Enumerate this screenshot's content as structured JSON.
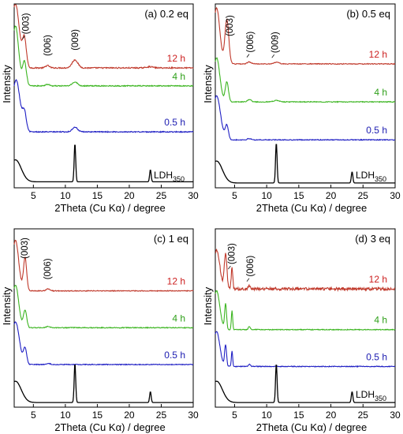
{
  "figure": {
    "colors": {
      "12 h": "#c0392b",
      "4 h": "#3cb521",
      "0.5 h": "#1f1fc4",
      "LDH": "#000000",
      "label_12 h": "#cc1f1f",
      "label_4 h": "#2fa01a",
      "label_0.5 h": "#1a1ab0"
    }
  },
  "chart_data": [
    {
      "type": "line",
      "title": "(a) 0.2 eq",
      "xlabel": "2Theta (Cu Kα)  /  degree",
      "ylabel": "Intensity",
      "xlim": [
        2,
        30
      ],
      "xticks": [
        "5",
        "10",
        "15",
        "20",
        "25",
        "30"
      ],
      "ldh_label": {
        "main": "LDH",
        "sub": "350"
      },
      "annotations": [
        {
          "text": "(003)",
          "x": 3.8,
          "pointer": true
        },
        {
          "text": "(006)",
          "x": 7.2,
          "pointer": false
        },
        {
          "text": "(009)",
          "x": 11.5,
          "pointer": false
        }
      ],
      "series": [
        {
          "name": "12 h",
          "offset": 3.0,
          "noise": 0.015,
          "peaks": [
            [
              2.2,
              1.6,
              0.6
            ],
            [
              3.6,
              0.7,
              0.3
            ],
            [
              7.2,
              0.06,
              0.3
            ],
            [
              11.5,
              0.2,
              0.45
            ],
            [
              23.2,
              0.03,
              0.5
            ]
          ]
        },
        {
          "name": "4 h",
          "offset": 2.55,
          "noise": 0.012,
          "peaks": [
            [
              2.2,
              1.5,
              0.5
            ],
            [
              3.6,
              0.6,
              0.3
            ],
            [
              7.2,
              0.04,
              0.3
            ],
            [
              11.5,
              0.1,
              0.4
            ]
          ]
        },
        {
          "name": "0.5 h",
          "offset": 1.4,
          "noise": 0.012,
          "peaks": [
            [
              2.3,
              1.3,
              0.6
            ],
            [
              3.6,
              0.45,
              0.3
            ],
            [
              11.5,
              0.12,
              0.4
            ]
          ]
        },
        {
          "name": "LDH",
          "offset": 0.15,
          "noise": 0.0,
          "peaks": [
            [
              2.2,
              0.55,
              0.9
            ],
            [
              11.5,
              0.95,
              0.12
            ],
            [
              23.3,
              0.3,
              0.12
            ]
          ]
        }
      ]
    },
    {
      "type": "line",
      "title": "(b) 0.5 eq",
      "xlabel": "2Theta (Cu Kα)  /  degree",
      "ylabel": "Intensity",
      "xlim": [
        2,
        30
      ],
      "xticks": [
        "5",
        "10",
        "15",
        "20",
        "25",
        "30"
      ],
      "ldh_label": {
        "main": "LDH",
        "sub": "350"
      },
      "annotations": [
        {
          "text": "(003)",
          "x": 4.2,
          "pointer": false
        },
        {
          "text": "(006)",
          "x": 7.4,
          "pointer": true
        },
        {
          "text": "(009)",
          "x": 11.3,
          "pointer": true
        }
      ],
      "series": [
        {
          "name": "12 h",
          "offset": 3.1,
          "noise": 0.01,
          "peaks": [
            [
              2.2,
              1.4,
              0.5
            ],
            [
              3.8,
              1.1,
              0.3
            ],
            [
              7.3,
              0.05,
              0.3
            ],
            [
              11.5,
              0.04,
              0.4
            ]
          ]
        },
        {
          "name": "4 h",
          "offset": 2.15,
          "noise": 0.01,
          "peaks": [
            [
              2.2,
              1.1,
              0.5
            ],
            [
              3.8,
              0.5,
              0.25
            ],
            [
              7.3,
              0.06,
              0.3
            ],
            [
              11.5,
              0.04,
              0.4
            ]
          ]
        },
        {
          "name": "0.5 h",
          "offset": 1.2,
          "noise": 0.01,
          "peaks": [
            [
              2.2,
              1.1,
              0.6
            ],
            [
              3.8,
              0.35,
              0.25
            ],
            [
              7.3,
              0.03,
              0.3
            ]
          ]
        },
        {
          "name": "LDH",
          "offset": 0.12,
          "noise": 0.0,
          "peaks": [
            [
              2.2,
              0.55,
              0.9
            ],
            [
              11.5,
              1.0,
              0.12
            ],
            [
              23.3,
              0.28,
              0.12
            ]
          ]
        }
      ]
    },
    {
      "type": "line",
      "title": "(c) 1 eq",
      "xlabel": "2Theta (Cu Kα)  /  degree",
      "ylabel": "Intensity",
      "xlim": [
        2,
        30
      ],
      "xticks": [
        "5",
        "10",
        "15",
        "20",
        "25",
        "30"
      ],
      "ldh_label": {
        "main": "",
        "sub": ""
      },
      "annotations": [
        {
          "text": "(003)",
          "x": 3.6,
          "pointer": false
        },
        {
          "text": "(006)",
          "x": 7.2,
          "pointer": false
        }
      ],
      "series": [
        {
          "name": "12 h",
          "offset": 3.0,
          "noise": 0.01,
          "peaks": [
            [
              2.2,
              1.3,
              0.5
            ],
            [
              3.7,
              0.85,
              0.25
            ],
            [
              7.3,
              0.05,
              0.3
            ]
          ]
        },
        {
          "name": "4 h",
          "offset": 2.05,
          "noise": 0.01,
          "peaks": [
            [
              2.2,
              1.1,
              0.5
            ],
            [
              3.7,
              0.45,
              0.25
            ],
            [
              7.3,
              0.03,
              0.3
            ]
          ]
        },
        {
          "name": "0.5 h",
          "offset": 1.1,
          "noise": 0.01,
          "peaks": [
            [
              2.2,
              1.1,
              0.6
            ],
            [
              3.7,
              0.4,
              0.25
            ],
            [
              7.3,
              0.03,
              0.3
            ]
          ]
        },
        {
          "name": "LDH",
          "offset": 0.12,
          "noise": 0.0,
          "peaks": [
            [
              2.2,
              0.55,
              0.9
            ],
            [
              11.5,
              1.0,
              0.12
            ],
            [
              23.3,
              0.28,
              0.12
            ]
          ]
        }
      ]
    },
    {
      "type": "line",
      "title": "(d) 3 eq",
      "xlabel": "2Theta (Cu Kα)  /  degree",
      "ylabel": "Intensity",
      "xlim": [
        2,
        30
      ],
      "xticks": [
        "5",
        "10",
        "15",
        "20",
        "25",
        "30"
      ],
      "ldh_label": {
        "main": "LDH",
        "sub": "350"
      },
      "annotations": [
        {
          "text": "(003)",
          "x": 4.5,
          "pointer": true
        },
        {
          "text": "(006)",
          "x": 7.4,
          "pointer": true
        }
      ],
      "series": [
        {
          "name": "12 h",
          "offset": 3.05,
          "noise": 0.035,
          "peaks": [
            [
              2.2,
              1.0,
              0.5
            ],
            [
              3.6,
              0.9,
              0.2
            ],
            [
              4.6,
              0.55,
              0.12
            ],
            [
              7.3,
              0.08,
              0.2
            ]
          ]
        },
        {
          "name": "4 h",
          "offset": 2.0,
          "noise": 0.01,
          "peaks": [
            [
              2.2,
              1.0,
              0.5
            ],
            [
              3.6,
              0.65,
              0.15
            ],
            [
              4.6,
              0.5,
              0.1
            ],
            [
              7.3,
              0.08,
              0.15
            ]
          ]
        },
        {
          "name": "0.5 h",
          "offset": 1.05,
          "noise": 0.01,
          "peaks": [
            [
              2.2,
              0.9,
              0.5
            ],
            [
              3.6,
              0.55,
              0.15
            ],
            [
              4.6,
              0.4,
              0.1
            ],
            [
              7.3,
              0.06,
              0.15
            ]
          ]
        },
        {
          "name": "LDH",
          "offset": 0.12,
          "noise": 0.0,
          "peaks": [
            [
              2.2,
              0.55,
              0.9
            ],
            [
              11.5,
              1.0,
              0.12
            ],
            [
              23.3,
              0.28,
              0.12
            ]
          ]
        }
      ]
    }
  ]
}
